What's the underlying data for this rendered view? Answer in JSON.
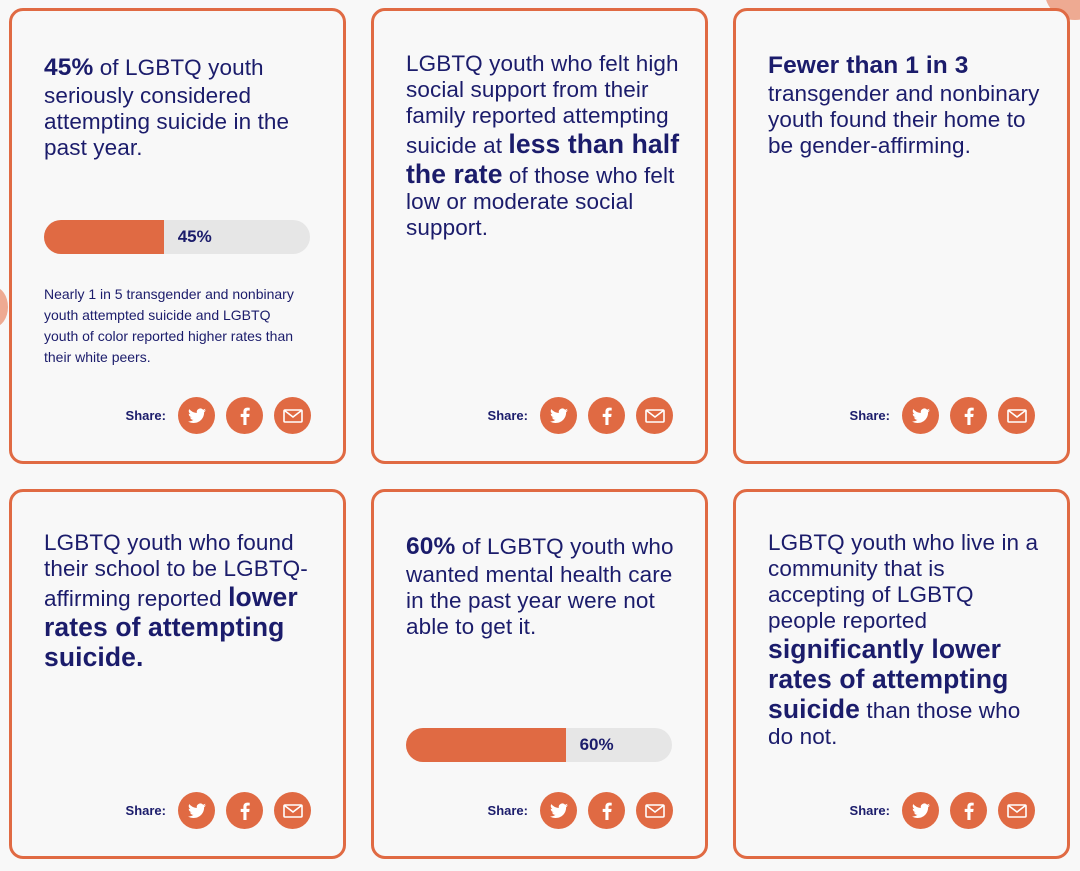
{
  "colors": {
    "accent": "#e06a43",
    "text": "#1b1c6b",
    "track": "#e6e6e6"
  },
  "share_label": "Share:",
  "share_icons": [
    "twitter-icon",
    "facebook-icon",
    "email-icon"
  ],
  "cards": [
    {
      "segments": [
        {
          "text": "45%",
          "bold": true
        },
        {
          "text": " of LGBTQ youth seriously considered attempting suicide in the past year."
        }
      ],
      "progress": {
        "percent": 45,
        "label": "45%"
      },
      "subtext": "Nearly 1 in 5 transgender and nonbinary youth attempted suicide and LGBTQ youth of color reported higher rates than their white peers."
    },
    {
      "segments": [
        {
          "text": "LGBTQ youth who felt high social support from their family reported attempting suicide at "
        },
        {
          "text": "less than half the rate",
          "bold": true
        },
        {
          "text": " of those who felt low or moderate social support."
        }
      ]
    },
    {
      "segments": [
        {
          "text": "Fewer than 1 in 3",
          "bold": true
        },
        {
          "text": " transgender and nonbinary youth found their home to be gender-affirming."
        }
      ]
    },
    {
      "segments": [
        {
          "text": "LGBTQ youth who found their school to be LGBTQ-affirming reported "
        },
        {
          "text": "lower rates of attempting suicide.",
          "bold": true
        }
      ]
    },
    {
      "segments": [
        {
          "text": "60%",
          "bold": true
        },
        {
          "text": " of LGBTQ youth who wanted mental health care in the past year were not able to get it."
        }
      ],
      "progress": {
        "percent": 60,
        "label": "60%"
      }
    },
    {
      "segments": [
        {
          "text": "LGBTQ youth who live in a community that is accepting of LGBTQ people reported "
        },
        {
          "text": "significantly lower rates of attempting suicide",
          "bold": true
        },
        {
          "text": " than those who do not."
        }
      ]
    }
  ]
}
